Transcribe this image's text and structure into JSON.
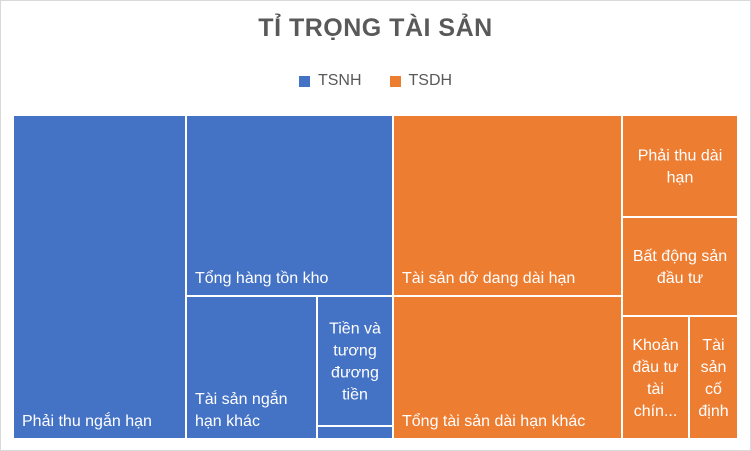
{
  "chart_data": {
    "type": "treemap",
    "title": "TỈ TRỌNG TÀI SẢN",
    "legend_position": "top",
    "series": [
      {
        "name": "TSNH",
        "color": "#4472C4",
        "items": [
          {
            "label": "Phải thu ngắn hạn",
            "value": 40.0
          },
          {
            "label": "Tổng hàng tồn kho",
            "value": 32.0
          },
          {
            "label": "Tài sản ngắn hạn khác",
            "value": 15.0
          },
          {
            "label": "Tiền và tương đương tiền",
            "value": 8.0
          },
          {
            "label": "",
            "value": 0.5
          }
        ]
      },
      {
        "name": "TSDH",
        "color": "#ED7D31",
        "items": [
          {
            "label": "Tài sản dở dang dài hạn",
            "value": 20.0
          },
          {
            "label": "Tổng tài sản dài hạn khác",
            "value": 17.0
          },
          {
            "label": "Phải thu dài hạn",
            "value": 6.0
          },
          {
            "label": "Bất động sản đầu tư",
            "value": 5.6
          },
          {
            "label": "Khoản đầu tư tài chín...",
            "value": 4.3
          },
          {
            "label": "Tài sản cố định",
            "value": 3.9
          }
        ]
      }
    ]
  }
}
